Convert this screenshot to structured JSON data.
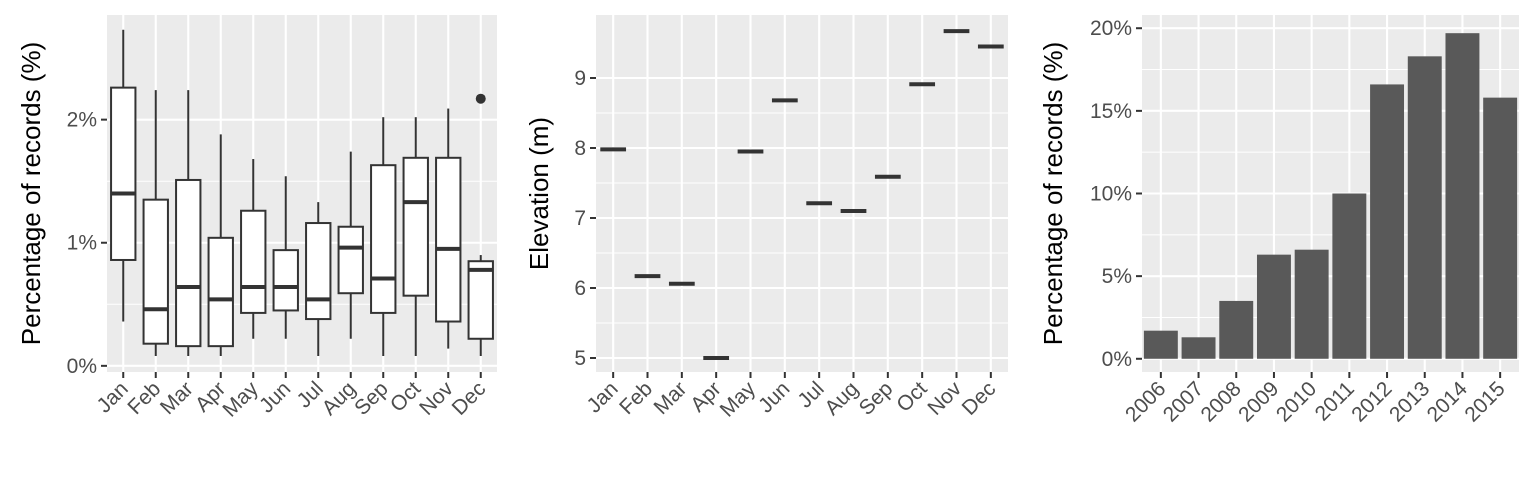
{
  "chart_data": [
    {
      "type": "box",
      "categories": [
        "Jan",
        "Feb",
        "Mar",
        "Apr",
        "May",
        "Jun",
        "Jul",
        "Aug",
        "Sep",
        "Oct",
        "Nov",
        "Dec"
      ],
      "boxes": [
        {
          "min": 0.36,
          "q1": 0.86,
          "median": 1.4,
          "q3": 2.26,
          "max": 2.73
        },
        {
          "min": 0.08,
          "q1": 0.18,
          "median": 0.46,
          "q3": 1.35,
          "max": 2.24
        },
        {
          "min": 0.08,
          "q1": 0.16,
          "median": 0.64,
          "q3": 1.51,
          "max": 2.24
        },
        {
          "min": 0.08,
          "q1": 0.16,
          "median": 0.54,
          "q3": 1.04,
          "max": 1.88
        },
        {
          "min": 0.22,
          "q1": 0.43,
          "median": 0.64,
          "q3": 1.26,
          "max": 1.68
        },
        {
          "min": 0.22,
          "q1": 0.45,
          "median": 0.64,
          "q3": 0.94,
          "max": 1.54
        },
        {
          "min": 0.08,
          "q1": 0.38,
          "median": 0.54,
          "q3": 1.16,
          "max": 1.33
        },
        {
          "min": 0.22,
          "q1": 0.59,
          "median": 0.96,
          "q3": 1.13,
          "max": 1.74
        },
        {
          "min": 0.08,
          "q1": 0.43,
          "median": 0.71,
          "q3": 1.63,
          "max": 2.02
        },
        {
          "min": 0.08,
          "q1": 0.57,
          "median": 1.33,
          "q3": 1.69,
          "max": 2.02
        },
        {
          "min": 0.14,
          "q1": 0.36,
          "median": 0.95,
          "q3": 1.69,
          "max": 2.09
        },
        {
          "min": 0.08,
          "q1": 0.22,
          "median": 0.78,
          "q3": 0.85,
          "max": 0.9,
          "outliers": [
            2.17
          ]
        }
      ],
      "ylabel": "Percentage of records (%)",
      "ylim": [
        -0.05,
        2.85
      ],
      "yticks": [
        0,
        1,
        2
      ],
      "ytick_labels": [
        "0%",
        "1%",
        "2%"
      ],
      "grid": true
    },
    {
      "type": "scatter",
      "categories": [
        "Jan",
        "Feb",
        "Mar",
        "Apr",
        "May",
        "Jun",
        "Jul",
        "Aug",
        "Sep",
        "Oct",
        "Nov",
        "Dec"
      ],
      "values": [
        7.98,
        6.17,
        6.06,
        5.0,
        7.95,
        8.68,
        7.21,
        7.1,
        7.59,
        8.91,
        9.67,
        9.45
      ],
      "ylabel": "Elevation (m)",
      "ylim": [
        4.8,
        9.9
      ],
      "yticks": [
        5,
        6,
        7,
        8,
        9
      ],
      "ytick_labels": [
        "5",
        "6",
        "7",
        "8",
        "9"
      ],
      "grid": true
    },
    {
      "type": "bar",
      "categories": [
        "2006",
        "2007",
        "2008",
        "2009",
        "2010",
        "2011",
        "2012",
        "2013",
        "2014",
        "2015"
      ],
      "values": [
        1.7,
        1.3,
        3.5,
        6.3,
        6.6,
        10.0,
        16.6,
        18.3,
        19.7,
        15.8
      ],
      "ylabel": "Percentage of records (%)",
      "ylim": [
        -0.8,
        20.8
      ],
      "yticks": [
        0,
        5,
        10,
        15,
        20
      ],
      "ytick_labels": [
        "0%",
        "5%",
        "10%",
        "15%",
        "20%"
      ],
      "grid": true
    }
  ]
}
